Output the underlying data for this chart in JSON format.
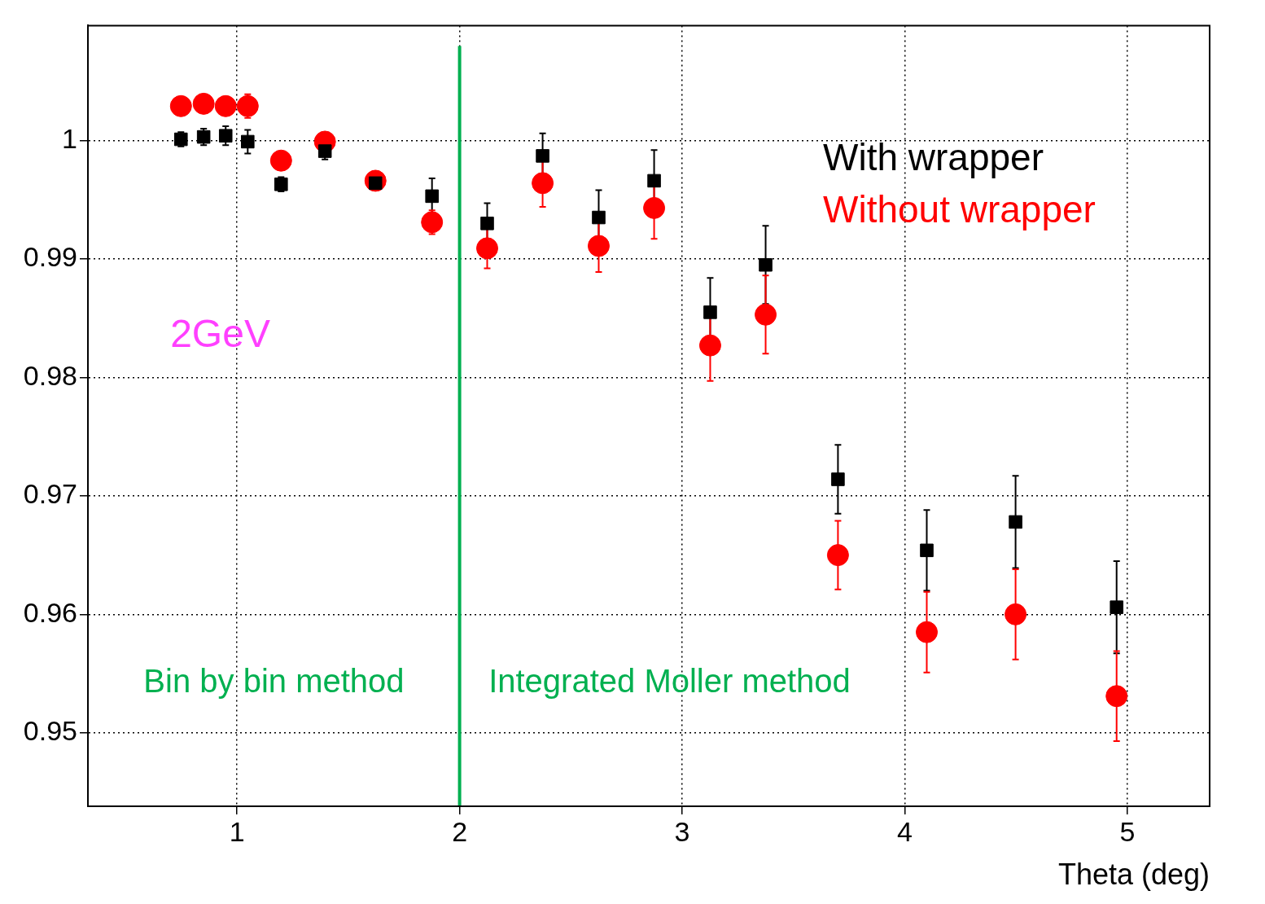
{
  "chart_data": {
    "type": "scatter",
    "xlabel": "Theta (deg)",
    "xlim": [
      0.33,
      5.37
    ],
    "xticks": [
      1,
      2,
      3,
      4,
      5
    ],
    "ylim": [
      0.9438,
      1.0097
    ],
    "yticks": [
      0.95,
      0.96,
      0.97,
      0.98,
      0.99,
      1
    ],
    "grid": true,
    "legend": "top right",
    "series": [
      {
        "name": "With wrapper",
        "color": "#000000",
        "marker": "square",
        "x": [
          0.748,
          0.85,
          0.949,
          1.048,
          1.198,
          1.395,
          1.622,
          1.876,
          2.124,
          2.373,
          2.625,
          2.874,
          3.126,
          3.375,
          3.7,
          4.099,
          4.498,
          4.952
        ],
        "values": [
          1.0001,
          1.0003,
          1.0004,
          0.9999,
          0.9963,
          0.9991,
          0.9964,
          0.9953,
          0.993,
          0.9987,
          0.9935,
          0.9966,
          0.9855,
          0.9895,
          0.9714,
          0.9654,
          0.9678,
          0.9606
        ],
        "errors": [
          0.0006,
          0.0007,
          0.0008,
          0.001,
          0.0006,
          0.0007,
          0.0005,
          0.0015,
          0.0017,
          0.0019,
          0.0023,
          0.0026,
          0.0029,
          0.0033,
          0.0029,
          0.0034,
          0.0039,
          0.0039
        ]
      },
      {
        "name": "Without wrapper",
        "color": "#ff0000",
        "marker": "circle",
        "x": [
          0.748,
          0.85,
          0.949,
          1.048,
          1.198,
          1.395,
          1.622,
          1.876,
          2.124,
          2.373,
          2.625,
          2.874,
          3.126,
          3.375,
          3.7,
          4.099,
          4.498,
          4.952
        ],
        "values": [
          1.0029,
          1.0031,
          1.0029,
          1.0029,
          0.9983,
          0.9999,
          0.9966,
          0.9931,
          0.9909,
          0.9964,
          0.9911,
          0.9943,
          0.9827,
          0.9853,
          0.965,
          0.9585,
          0.96,
          0.9531
        ],
        "errors": [
          0.0006,
          0.0007,
          0.0008,
          0.001,
          0.0007,
          0.0007,
          0.0008,
          0.001,
          0.0017,
          0.002,
          0.0022,
          0.0026,
          0.003,
          0.0033,
          0.0029,
          0.0034,
          0.0038,
          0.0038
        ]
      }
    ],
    "ref_lines": [
      {
        "axis": "x",
        "value": 2,
        "color": "#00b050"
      }
    ],
    "annotations": [
      "2GeV",
      "Bin by bin method",
      "Integrated Moller method"
    ]
  }
}
